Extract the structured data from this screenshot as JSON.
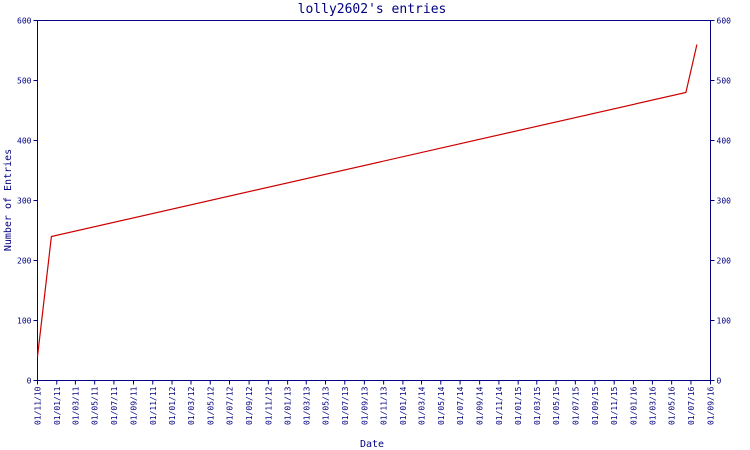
{
  "chart_data": {
    "type": "line",
    "title": "lolly2602's entries",
    "xlabel": "Date",
    "ylabel": "Number of Entries",
    "ylim": [
      0,
      600
    ],
    "y_ticks": [
      0,
      100,
      200,
      300,
      400,
      500,
      600
    ],
    "x_tick_labels": [
      "01/11/10",
      "01/01/11",
      "01/03/11",
      "01/05/11",
      "01/07/11",
      "01/09/11",
      "01/11/11",
      "01/01/12",
      "01/03/12",
      "01/05/12",
      "01/07/12",
      "01/09/12",
      "01/11/12",
      "01/01/13",
      "01/03/13",
      "01/05/13",
      "01/07/13",
      "01/09/13",
      "01/11/13",
      "01/01/14",
      "01/03/14",
      "01/05/14",
      "01/07/14",
      "01/09/14",
      "01/11/14",
      "01/01/15",
      "01/03/15",
      "01/05/15",
      "01/07/15",
      "01/09/15",
      "01/11/15",
      "01/01/16",
      "01/03/16",
      "01/05/16",
      "01/07/16",
      "01/09/16"
    ],
    "grid": false,
    "line_color": "#cc0000",
    "axis_color": "#000080",
    "series": [
      {
        "x": [
          "01/11/10",
          "15/12/10",
          "15/06/16",
          "20/07/16"
        ],
        "values": [
          40,
          240,
          480,
          560
        ]
      }
    ]
  }
}
